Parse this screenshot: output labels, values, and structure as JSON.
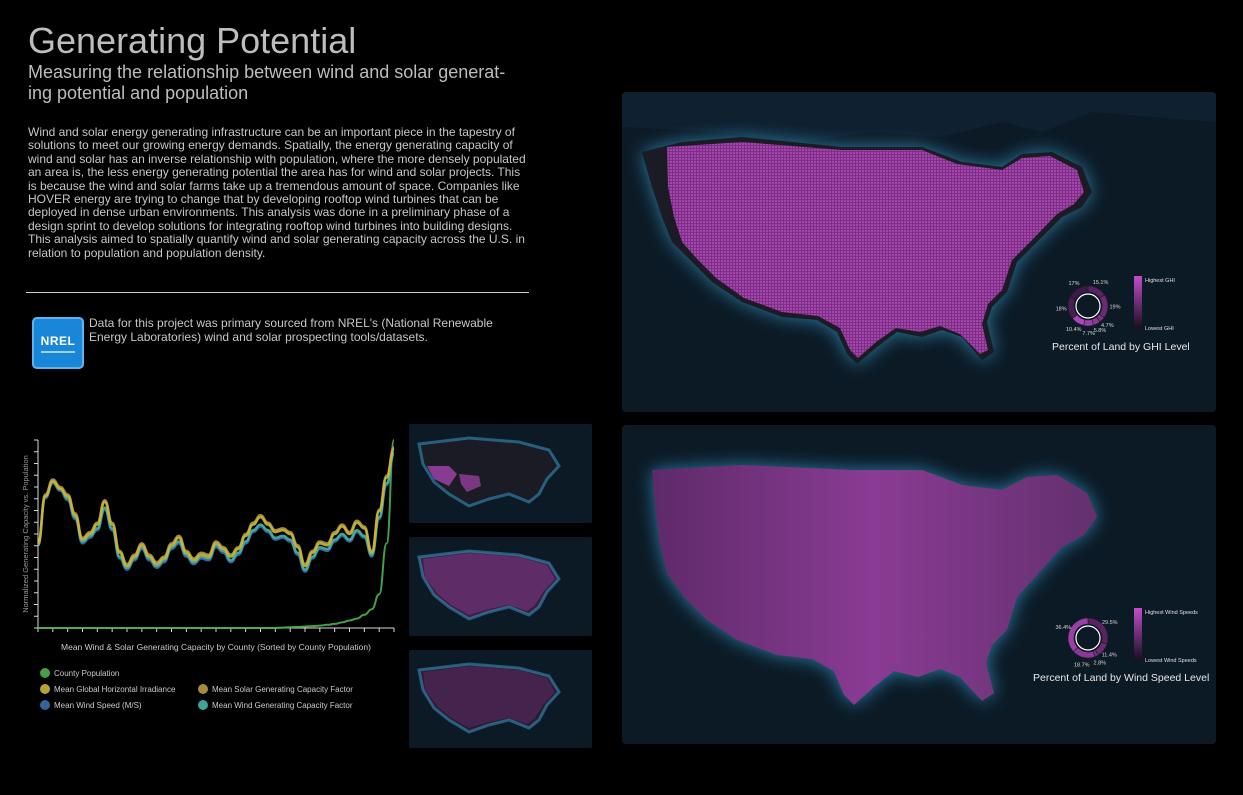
{
  "header": {
    "title": "Generating Potential",
    "subtitle": "Measuring the relationship between wind and solar generat-ing potential and population"
  },
  "body_text": "Wind and solar energy generating infrastructure can be an important piece in the tapestry of solutions to meet our growing energy demands. Spatially, the energy generating capacity of wind and solar has an inverse relationship with population, where the more densely populated an area is, the less energy generating potential the area has for wind and solar projects. This is because the wind and solar farms take up a tremendous amount of space. Companies like HOVER energy are trying to change that by developing rooftop wind turbines that can be deployed in dense urban environments. This analysis was done in a preliminary phase of a design sprint to develop solutions for integrating rooftop wind turbines into building designs. This analysis aimed to spatially quantify wind and solar generating capacity across the U.S. in relation to population and population density.",
  "source": {
    "logo_text": "NREL",
    "note": "Data for this project was primary sourced from NREL's (National Renewable Energy Laboratories) wind and solar prospecting tools/datasets."
  },
  "colors": {
    "background": "#000000",
    "map_water": "#0c1a26",
    "map_glow": "#3aa6d6",
    "magenta": "#b04ab8",
    "county_population": "#4caf50",
    "ghi": "#c9b63a",
    "solar_cf": "#b89a45",
    "wind_speed": "#3c6fa8",
    "wind_cf": "#45b5a8"
  },
  "ghi_map": {
    "caption": "Percent of Land by GHI Level",
    "legend_high": "Highest GHI",
    "legend_low": "Lowest GHI",
    "slices": [
      {
        "label": "15.1%",
        "value": 15.1
      },
      {
        "label": "19%",
        "value": 19
      },
      {
        "label": "4.7%",
        "value": 4.7
      },
      {
        "label": "5.8%",
        "value": 5.8
      },
      {
        "label": "7.7%",
        "value": 7.7
      },
      {
        "label": "10.4%",
        "value": 10.4
      },
      {
        "label": "18%",
        "value": 18
      },
      {
        "label": "17%",
        "value": 17
      }
    ]
  },
  "wind_map": {
    "caption": "Percent of Land by Wind Speed Level",
    "legend_high": "Highest Wind Speeds",
    "legend_low": "Lowest Wind Speeds",
    "slices": [
      {
        "label": "29.5%",
        "value": 29.5
      },
      {
        "label": "11.4%",
        "value": 11.4
      },
      {
        "label": "2.8%",
        "value": 2.8
      },
      {
        "label": "18.7%",
        "value": 18.7
      },
      {
        "label": "36.4%",
        "value": 36.4
      }
    ]
  },
  "chart_data": {
    "type": "line",
    "xlabel": "Mean Wind & Solar Generating Capacity by County (Sorted by County Population)",
    "ylabel": "Normalized Generating Capacity vs. Population",
    "y_ticks": 16,
    "x_ticks": 24,
    "x": [
      0,
      1,
      2,
      3,
      4,
      5,
      6,
      7,
      8,
      9,
      10,
      11,
      12,
      13,
      14,
      15,
      16,
      17,
      18,
      19,
      20,
      21,
      22,
      23,
      24,
      25,
      26,
      27,
      28,
      29,
      30,
      31,
      32,
      33,
      34,
      35,
      36,
      37,
      38,
      39,
      40,
      41,
      42,
      43,
      44,
      45,
      46,
      47,
      48
    ],
    "ylim": [
      0,
      1
    ],
    "series": [
      {
        "name": "County Population",
        "color_key": "county_population",
        "values": [
          0,
          0,
          0,
          0,
          0,
          0,
          0,
          0,
          0,
          0,
          0,
          0,
          0,
          0,
          0,
          0,
          0,
          0,
          0,
          0,
          0,
          0,
          0,
          0,
          0,
          0,
          0,
          0,
          0,
          0,
          0,
          0,
          0,
          0.002,
          0.004,
          0.006,
          0.008,
          0.01,
          0.013,
          0.017,
          0.022,
          0.03,
          0.04,
          0.05,
          0.07,
          0.1,
          0.18,
          0.45,
          1.0
        ]
      },
      {
        "name": "Mean Global Horizontal Irradiance",
        "color_key": "ghi",
        "values": [
          0.45,
          0.7,
          0.78,
          0.74,
          0.7,
          0.6,
          0.47,
          0.5,
          0.55,
          0.67,
          0.55,
          0.4,
          0.33,
          0.38,
          0.44,
          0.38,
          0.34,
          0.37,
          0.44,
          0.48,
          0.4,
          0.36,
          0.39,
          0.38,
          0.45,
          0.42,
          0.38,
          0.42,
          0.49,
          0.55,
          0.59,
          0.55,
          0.51,
          0.52,
          0.5,
          0.43,
          0.33,
          0.4,
          0.45,
          0.44,
          0.5,
          0.54,
          0.5,
          0.56,
          0.53,
          0.4,
          0.62,
          0.8,
          0.95
        ]
      },
      {
        "name": "Mean Solar Generating Capacity Factor",
        "color_key": "solar_cf",
        "values": [
          0.45,
          0.71,
          0.79,
          0.75,
          0.71,
          0.61,
          0.48,
          0.51,
          0.56,
          0.68,
          0.56,
          0.41,
          0.34,
          0.39,
          0.45,
          0.39,
          0.35,
          0.38,
          0.45,
          0.49,
          0.41,
          0.37,
          0.4,
          0.39,
          0.46,
          0.43,
          0.39,
          0.43,
          0.5,
          0.56,
          0.6,
          0.56,
          0.52,
          0.53,
          0.51,
          0.44,
          0.34,
          0.41,
          0.46,
          0.45,
          0.51,
          0.55,
          0.51,
          0.57,
          0.54,
          0.41,
          0.63,
          0.81,
          0.96
        ]
      },
      {
        "name": "Mean Wind Speed (M/S)",
        "color_key": "wind_speed",
        "values": [
          0.44,
          0.69,
          0.77,
          0.73,
          0.68,
          0.58,
          0.45,
          0.48,
          0.52,
          0.63,
          0.52,
          0.37,
          0.31,
          0.36,
          0.42,
          0.36,
          0.32,
          0.35,
          0.42,
          0.45,
          0.38,
          0.34,
          0.37,
          0.36,
          0.43,
          0.4,
          0.35,
          0.39,
          0.45,
          0.51,
          0.54,
          0.51,
          0.47,
          0.48,
          0.46,
          0.39,
          0.3,
          0.37,
          0.42,
          0.41,
          0.46,
          0.49,
          0.46,
          0.51,
          0.48,
          0.38,
          0.58,
          0.76,
          0.92
        ]
      },
      {
        "name": "Mean Wind Generating Capacity Factor",
        "color_key": "wind_cf",
        "values": [
          0.44,
          0.7,
          0.78,
          0.74,
          0.69,
          0.59,
          0.46,
          0.49,
          0.53,
          0.64,
          0.53,
          0.38,
          0.32,
          0.37,
          0.43,
          0.37,
          0.33,
          0.36,
          0.43,
          0.46,
          0.39,
          0.35,
          0.38,
          0.37,
          0.44,
          0.41,
          0.36,
          0.4,
          0.46,
          0.52,
          0.55,
          0.52,
          0.48,
          0.49,
          0.47,
          0.4,
          0.31,
          0.38,
          0.43,
          0.42,
          0.47,
          0.5,
          0.47,
          0.52,
          0.49,
          0.39,
          0.59,
          0.77,
          0.93
        ]
      }
    ],
    "legend_placement": "bottom"
  }
}
